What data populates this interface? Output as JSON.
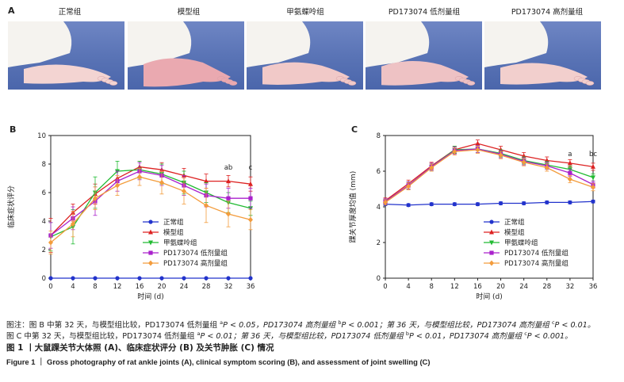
{
  "panel_a": {
    "letter": "A",
    "groups": [
      "正常组",
      "模型组",
      "甲氨蝶呤组",
      "PD173074 低剂量组",
      "PD173074 高剂量组"
    ]
  },
  "chart_data": [
    {
      "type": "line",
      "panel": "B",
      "xlabel": "时间 (d)",
      "ylabel": "临床症状评分",
      "x": [
        0,
        4,
        8,
        12,
        16,
        20,
        24,
        28,
        32,
        36
      ],
      "xlim": [
        0,
        36
      ],
      "ylim": [
        0,
        10
      ],
      "yticks": [
        0,
        2,
        4,
        6,
        8,
        10
      ],
      "legend": [
        "正常组",
        "模型组",
        "甲氨蝶呤组",
        "PD173074 低剂量组",
        "PD173074 高剂量组"
      ],
      "legend_position": "bottom-right",
      "series": [
        {
          "name": "正常组",
          "color": "#2233cc",
          "marker": "circle",
          "values": [
            0,
            0,
            0,
            0,
            0,
            0,
            0,
            0,
            0,
            0
          ],
          "errors": [
            0,
            0,
            0,
            0,
            0,
            0,
            0,
            0,
            0,
            0
          ]
        },
        {
          "name": "模型组",
          "color": "#dd2222",
          "marker": "triangle-up",
          "values": [
            3.0,
            4.6,
            5.9,
            7.0,
            7.8,
            7.6,
            7.2,
            6.8,
            6.8,
            6.6
          ],
          "errors": [
            1.2,
            0.6,
            0.7,
            0.5,
            0.4,
            0.5,
            0.5,
            0.5,
            0.4,
            0.5
          ]
        },
        {
          "name": "甲氨蝶呤组",
          "color": "#22bb33",
          "marker": "triangle-down",
          "values": [
            2.9,
            3.6,
            6.0,
            7.5,
            7.6,
            7.3,
            6.7,
            6.0,
            5.3,
            4.9
          ],
          "errors": [
            1.0,
            1.2,
            1.1,
            0.7,
            0.6,
            0.7,
            0.8,
            0.7,
            0.7,
            0.5
          ]
        },
        {
          "name": "PD173074 低剂量组",
          "color": "#aa22cc",
          "marker": "square",
          "values": [
            3.0,
            4.2,
            5.4,
            6.8,
            7.5,
            7.2,
            6.5,
            5.8,
            5.6,
            5.6
          ],
          "errors": [
            0.9,
            0.8,
            1.0,
            0.7,
            0.6,
            0.7,
            0.7,
            0.8,
            0.7,
            0.7
          ]
        },
        {
          "name": "PD173074 高剂量组",
          "color": "#f39c3c",
          "marker": "diamond",
          "values": [
            2.5,
            3.8,
            5.6,
            6.5,
            7.1,
            6.7,
            6.1,
            5.1,
            4.5,
            4.1
          ],
          "errors": [
            0.8,
            0.9,
            0.8,
            0.7,
            0.6,
            0.8,
            0.9,
            1.2,
            0.9,
            0.7
          ]
        }
      ],
      "annotations": [
        {
          "x": 32,
          "y": 7.6,
          "text": "ab"
        },
        {
          "x": 36,
          "y": 7.6,
          "text": "c"
        }
      ]
    },
    {
      "type": "line",
      "panel": "C",
      "xlabel": "时间 (d)",
      "ylabel": "踝关节厚度均值 (mm)",
      "x": [
        0,
        4,
        8,
        12,
        16,
        20,
        24,
        28,
        32,
        36
      ],
      "xlim": [
        0,
        36
      ],
      "ylim": [
        0,
        8
      ],
      "yticks": [
        0,
        2,
        4,
        6,
        8
      ],
      "legend": [
        "正常组",
        "模型组",
        "甲氨蝶呤组",
        "PD173074 低剂量组",
        "PD173074 高剂量组"
      ],
      "legend_position": "bottom-right",
      "series": [
        {
          "name": "正常组",
          "color": "#2233cc",
          "marker": "circle",
          "values": [
            4.15,
            4.1,
            4.15,
            4.15,
            4.15,
            4.2,
            4.2,
            4.25,
            4.25,
            4.3
          ],
          "errors": [
            0.08,
            0.08,
            0.08,
            0.08,
            0.08,
            0.08,
            0.08,
            0.08,
            0.08,
            0.08
          ]
        },
        {
          "name": "模型组",
          "color": "#dd2222",
          "marker": "triangle-up",
          "values": [
            4.35,
            5.3,
            6.3,
            7.2,
            7.55,
            7.2,
            6.85,
            6.6,
            6.45,
            6.25
          ],
          "errors": [
            0.15,
            0.2,
            0.2,
            0.2,
            0.2,
            0.2,
            0.2,
            0.2,
            0.2,
            0.2
          ]
        },
        {
          "name": "甲氨蝶呤组",
          "color": "#22bb33",
          "marker": "triangle-down",
          "values": [
            4.3,
            5.2,
            6.25,
            7.2,
            7.25,
            7.0,
            6.6,
            6.35,
            6.1,
            5.65
          ],
          "errors": [
            0.15,
            0.2,
            0.2,
            0.2,
            0.2,
            0.2,
            0.2,
            0.2,
            0.2,
            0.2
          ]
        },
        {
          "name": "PD173074 低剂量组",
          "color": "#aa22cc",
          "marker": "square",
          "values": [
            4.3,
            5.2,
            6.25,
            7.15,
            7.25,
            6.95,
            6.55,
            6.3,
            5.9,
            5.25
          ],
          "errors": [
            0.15,
            0.2,
            0.2,
            0.2,
            0.2,
            0.2,
            0.2,
            0.2,
            0.2,
            0.2
          ]
        },
        {
          "name": "PD173074 高剂量组",
          "color": "#f39c3c",
          "marker": "diamond",
          "values": [
            4.25,
            5.15,
            6.2,
            7.1,
            7.2,
            6.9,
            6.5,
            6.2,
            5.55,
            5.1
          ],
          "errors": [
            0.15,
            0.2,
            0.2,
            0.2,
            0.2,
            0.2,
            0.2,
            0.2,
            0.2,
            0.2
          ]
        }
      ],
      "annotations": [
        {
          "x": 32,
          "y": 6.85,
          "text": "a"
        },
        {
          "x": 36,
          "y": 6.85,
          "text": "bc"
        }
      ]
    }
  ],
  "notes": {
    "line1": {
      "pre": "图注：图 B 中第 32 天，与模型组比较，PD173074 低剂量组 ",
      "sup_a": "a",
      "p_a": "P < 0.05，PD173074 高剂量组 ",
      "sup_b": "b",
      "p_b": "P < 0.001；第 36 天，与模型组比较，PD173074 高剂量组 ",
      "sup_c": "c",
      "p_c": "P < 0.01。"
    },
    "line2": {
      "pre": "图 C 中第 32 天，与模型组比较，PD173074 低剂量组 ",
      "sup_a": "a",
      "p_a": "P < 0.01；第 36 天，与模型组比较，PD173074 低剂量组 ",
      "sup_b": "b",
      "p_b": "P < 0.01，PD173074 高剂量组 ",
      "sup_c": "c",
      "p_c": "P < 0.001。"
    }
  },
  "caption": {
    "zh": "图 1 丨大鼠踝关节大体照 (A)、临床症状评分 (B) 及关节肿胀 (C) 情况",
    "en": "Figure 1 ｜ Gross photography of rat ankle joints (A), clinical symptom scoring (B), and assessment of joint swelling (C)"
  }
}
